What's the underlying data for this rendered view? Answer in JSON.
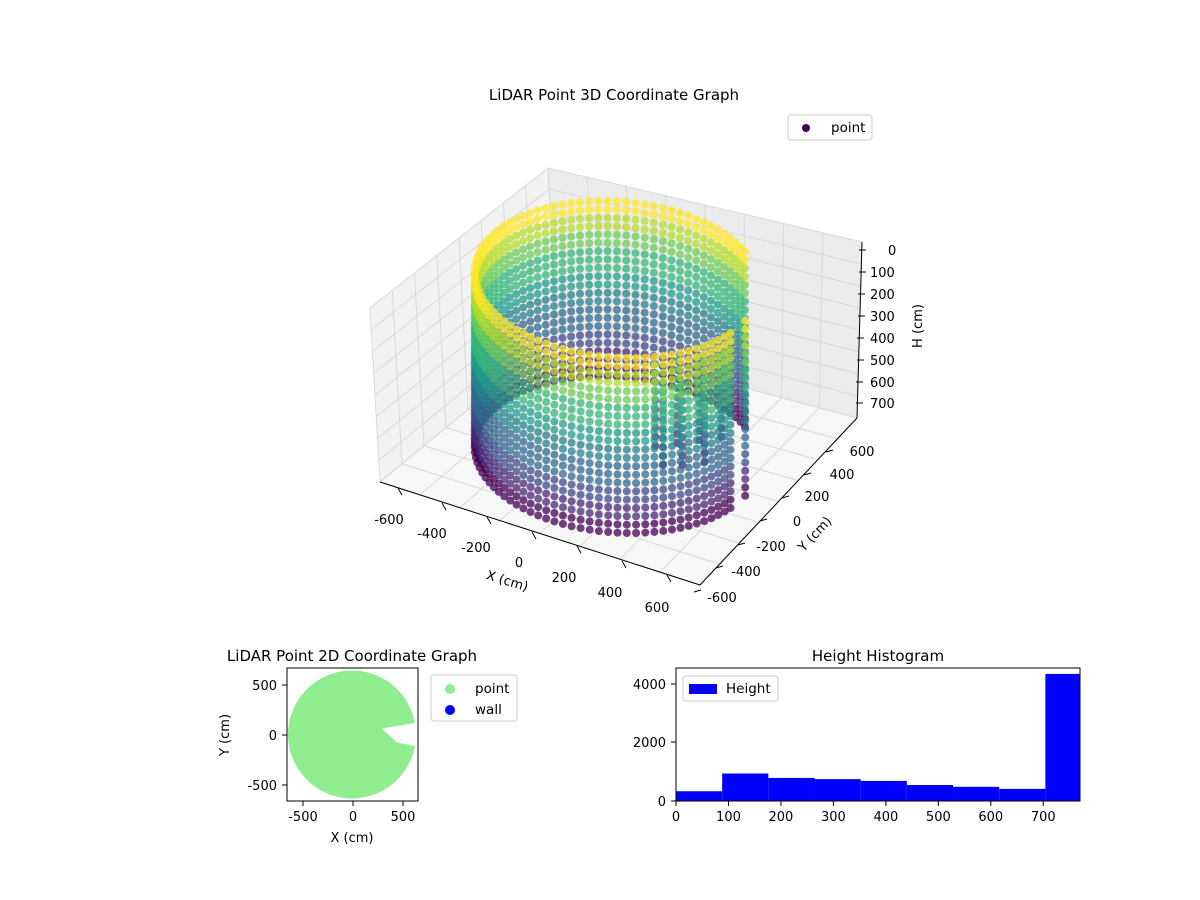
{
  "colors": {
    "viridis": [
      "#440154",
      "#482878",
      "#3e4989",
      "#31688e",
      "#26828e",
      "#1f9e89",
      "#35b779",
      "#6ece58",
      "#b5de2b",
      "#fde725"
    ],
    "point2d": "#90ee90",
    "wall": "#0000ff",
    "hist": "#0000ff",
    "pane": "#f2f2f2",
    "grid": "#d9d9d9"
  },
  "chart_data": [
    {
      "id": "plot3d",
      "type": "scatter",
      "title": "LiDAR Point 3D Coordinate Graph",
      "xlabel": "X (cm)",
      "ylabel": "Y (cm)",
      "zlabel": "H (cm)",
      "legend": [
        "point"
      ],
      "legend_placement": "upper-right",
      "xlim": [
        -650,
        650
      ],
      "ylim": [
        -650,
        650
      ],
      "zlim": [
        770,
        0
      ],
      "xticks": [
        "-600",
        "-400",
        "-200",
        "0",
        "200",
        "400",
        "600"
      ],
      "yticks": [
        "-600",
        "-400",
        "-200",
        "0",
        "200",
        "400",
        "600"
      ],
      "zticks": [
        "0",
        "100",
        "200",
        "300",
        "400",
        "500",
        "600",
        "700"
      ],
      "cylinder": {
        "radius": 520,
        "center_x": -20,
        "center_y": 30,
        "h_min": 0,
        "h_max": 770,
        "gap_angle_deg": [
          -10,
          50
        ]
      },
      "colormap": "viridis",
      "grid": true
    },
    {
      "id": "plot2d",
      "type": "scatter",
      "title": "LiDAR Point 2D Coordinate Graph",
      "xlabel": "X (cm)",
      "ylabel": "Y (cm)",
      "xlim": [
        -650,
        660
      ],
      "ylim": [
        -660,
        660
      ],
      "xticks": [
        "-500",
        "0",
        "500"
      ],
      "yticks": [
        "500",
        "0",
        "-500"
      ],
      "series": [
        {
          "name": "point",
          "color": "#90ee90"
        },
        {
          "name": "wall",
          "color": "#0000ff"
        }
      ],
      "legend_placement": "outside-right",
      "disc": {
        "center_x": 0,
        "center_y": 0,
        "radius": 640
      }
    },
    {
      "id": "hist",
      "type": "bar",
      "title": "Height Histogram",
      "legend": [
        "Height"
      ],
      "legend_placement": "upper-left",
      "xlim": [
        0,
        770
      ],
      "ylim": [
        0,
        4500
      ],
      "xticks": [
        "0",
        "100",
        "200",
        "300",
        "400",
        "500",
        "600",
        "700"
      ],
      "yticks": [
        "0",
        "2000",
        "4000"
      ],
      "bins": [
        {
          "x0": 0,
          "x1": 88,
          "value": 330
        },
        {
          "x0": 88,
          "x1": 176,
          "value": 930
        },
        {
          "x0": 176,
          "x1": 264,
          "value": 780
        },
        {
          "x0": 264,
          "x1": 352,
          "value": 740
        },
        {
          "x0": 352,
          "x1": 440,
          "value": 680
        },
        {
          "x0": 440,
          "x1": 528,
          "value": 540
        },
        {
          "x0": 528,
          "x1": 616,
          "value": 480
        },
        {
          "x0": 616,
          "x1": 704,
          "value": 410
        },
        {
          "x0": 704,
          "x1": 770,
          "value": 4300
        }
      ]
    }
  ]
}
